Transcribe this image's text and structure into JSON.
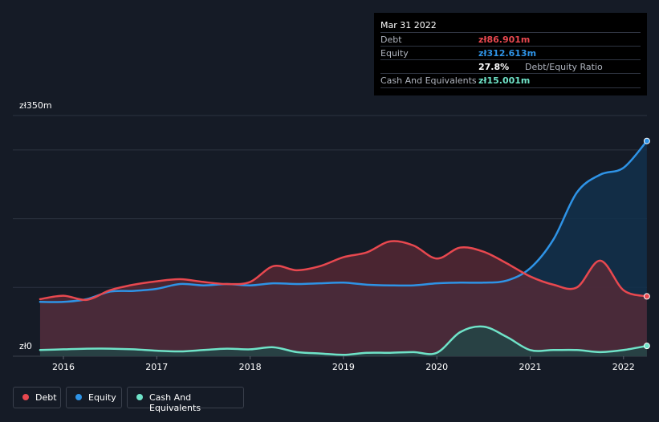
{
  "chart_data": {
    "type": "line",
    "x_tick_labels": [
      "2016",
      "2017",
      "2018",
      "2019",
      "2020",
      "2021",
      "2022"
    ],
    "x_ticks": [
      2016,
      2017,
      2018,
      2019,
      2020,
      2021,
      2022
    ],
    "xlim": [
      2015.2,
      2022.25
    ],
    "ylim": [
      0,
      350
    ],
    "y_tick_labels": {
      "top": "zł350m",
      "bottom": "zł0"
    },
    "unit": "zł m",
    "area_filled": true,
    "grid": "horizontal",
    "legend_position": "bottom-left",
    "series": [
      {
        "name": "Debt",
        "color": "#e8484f",
        "fill": "#5c2a35",
        "points": [
          [
            2015.75,
            83
          ],
          [
            2016.0,
            88
          ],
          [
            2016.25,
            82
          ],
          [
            2016.5,
            96
          ],
          [
            2016.75,
            104
          ],
          [
            2017.0,
            109
          ],
          [
            2017.25,
            112
          ],
          [
            2017.5,
            108
          ],
          [
            2017.75,
            105
          ],
          [
            2018.0,
            108
          ],
          [
            2018.25,
            131
          ],
          [
            2018.5,
            125
          ],
          [
            2018.75,
            131
          ],
          [
            2019.0,
            144
          ],
          [
            2019.25,
            151
          ],
          [
            2019.5,
            167
          ],
          [
            2019.75,
            161
          ],
          [
            2020.0,
            142
          ],
          [
            2020.25,
            158
          ],
          [
            2020.5,
            152
          ],
          [
            2020.75,
            135
          ],
          [
            2021.0,
            116
          ],
          [
            2021.25,
            104
          ],
          [
            2021.5,
            100
          ],
          [
            2021.75,
            139
          ],
          [
            2022.0,
            96
          ],
          [
            2022.25,
            87
          ]
        ]
      },
      {
        "name": "Equity",
        "color": "#2e93e6",
        "fill": "#12304c",
        "points": [
          [
            2015.75,
            79
          ],
          [
            2016.0,
            79
          ],
          [
            2016.25,
            83
          ],
          [
            2016.5,
            94
          ],
          [
            2016.75,
            95
          ],
          [
            2017.0,
            98
          ],
          [
            2017.25,
            105
          ],
          [
            2017.5,
            103
          ],
          [
            2017.75,
            105
          ],
          [
            2018.0,
            103
          ],
          [
            2018.25,
            106
          ],
          [
            2018.5,
            105
          ],
          [
            2018.75,
            106
          ],
          [
            2019.0,
            107
          ],
          [
            2019.25,
            104
          ],
          [
            2019.5,
            103
          ],
          [
            2019.75,
            103
          ],
          [
            2020.0,
            106
          ],
          [
            2020.25,
            107
          ],
          [
            2020.5,
            107
          ],
          [
            2020.75,
            110
          ],
          [
            2021.0,
            128
          ],
          [
            2021.25,
            170
          ],
          [
            2021.5,
            238
          ],
          [
            2021.75,
            264
          ],
          [
            2022.0,
            274
          ],
          [
            2022.25,
            313
          ]
        ]
      },
      {
        "name": "Cash And Equivalents",
        "color": "#6fe3c8",
        "fill": "#1e4a48",
        "points": [
          [
            2015.75,
            9
          ],
          [
            2016.0,
            10
          ],
          [
            2016.25,
            11
          ],
          [
            2016.5,
            11
          ],
          [
            2016.75,
            10
          ],
          [
            2017.0,
            8
          ],
          [
            2017.25,
            7
          ],
          [
            2017.5,
            9
          ],
          [
            2017.75,
            11
          ],
          [
            2018.0,
            10
          ],
          [
            2018.25,
            13
          ],
          [
            2018.5,
            6
          ],
          [
            2018.75,
            4
          ],
          [
            2019.0,
            2
          ],
          [
            2019.25,
            5
          ],
          [
            2019.5,
            5
          ],
          [
            2019.75,
            6
          ],
          [
            2020.0,
            5
          ],
          [
            2020.25,
            35
          ],
          [
            2020.5,
            43
          ],
          [
            2020.75,
            28
          ],
          [
            2021.0,
            9
          ],
          [
            2021.25,
            9
          ],
          [
            2021.5,
            9
          ],
          [
            2021.75,
            6
          ],
          [
            2022.0,
            9
          ],
          [
            2022.25,
            15
          ]
        ]
      }
    ]
  },
  "tooltip": {
    "date": "Mar 31 2022",
    "rows": {
      "debt": {
        "label": "Debt",
        "value": "zł86.901m"
      },
      "equity": {
        "label": "Equity",
        "value": "zł312.613m"
      },
      "ratio": {
        "value": "27.8%",
        "suffix": "Debt/Equity Ratio"
      },
      "cash": {
        "label": "Cash And Equivalents",
        "value": "zł15.001m"
      }
    }
  },
  "legend": {
    "debt": "Debt",
    "equity": "Equity",
    "cash": "Cash And Equivalents"
  },
  "colors": {
    "background": "#151b26",
    "debt": "#e8484f",
    "equity": "#2e93e6",
    "cash": "#6fe3c8",
    "grid": "#2c3340"
  }
}
